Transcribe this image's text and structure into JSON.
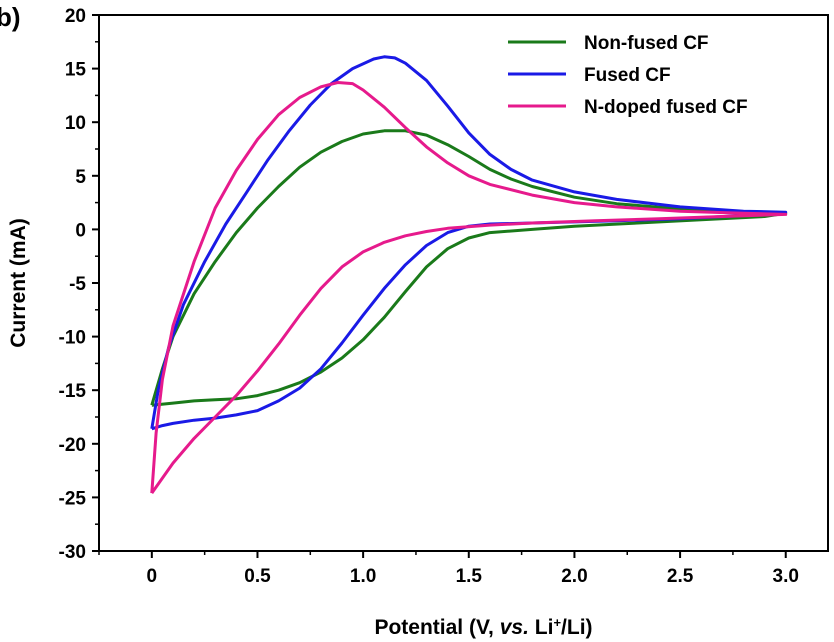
{
  "panel_label": "b)",
  "chart_data": {
    "type": "line",
    "title": "",
    "xlabel": {
      "prefix": "Potential (V, ",
      "italic": "vs.",
      "mid": " Li",
      "sup": "+",
      "suffix": "/Li)"
    },
    "ylabel": "Current (mA)",
    "xlim": [
      -0.25,
      3.2
    ],
    "ylim": [
      -30,
      20
    ],
    "xticks": [
      0,
      0.5,
      1.0,
      1.5,
      2.0,
      2.5,
      3.0
    ],
    "xtick_labels": [
      "0",
      "0.5",
      "1.0",
      "1.5",
      "2.0",
      "2.5",
      "3.0"
    ],
    "yticks": [
      20,
      15,
      10,
      5,
      0,
      -5,
      -10,
      -15,
      -20,
      -25,
      -30
    ],
    "ytick_labels": [
      "20",
      "15",
      "10",
      "5",
      "0",
      "-5",
      "-10",
      "-15",
      "-20",
      "-25",
      "-30"
    ],
    "legend_position": "top-right",
    "series": [
      {
        "name": "Non-fused CF",
        "color": "#1a7a1a",
        "points": [
          [
            0.0,
            -16.4
          ],
          [
            0.05,
            -13
          ],
          [
            0.1,
            -10
          ],
          [
            0.2,
            -6
          ],
          [
            0.3,
            -3
          ],
          [
            0.4,
            -0.3
          ],
          [
            0.5,
            2
          ],
          [
            0.6,
            4
          ],
          [
            0.7,
            5.8
          ],
          [
            0.8,
            7.2
          ],
          [
            0.9,
            8.2
          ],
          [
            1.0,
            8.9
          ],
          [
            1.1,
            9.2
          ],
          [
            1.2,
            9.2
          ],
          [
            1.3,
            8.8
          ],
          [
            1.4,
            7.9
          ],
          [
            1.5,
            6.8
          ],
          [
            1.6,
            5.6
          ],
          [
            1.7,
            4.7
          ],
          [
            1.8,
            4
          ],
          [
            2.0,
            3
          ],
          [
            2.2,
            2.4
          ],
          [
            2.5,
            1.9
          ],
          [
            2.8,
            1.6
          ],
          [
            3.0,
            1.5
          ],
          [
            2.9,
            1.2
          ],
          [
            2.6,
            0.9
          ],
          [
            2.3,
            0.6
          ],
          [
            2.0,
            0.3
          ],
          [
            1.8,
            0
          ],
          [
            1.6,
            -0.3
          ],
          [
            1.5,
            -0.8
          ],
          [
            1.4,
            -1.8
          ],
          [
            1.3,
            -3.5
          ],
          [
            1.2,
            -5.8
          ],
          [
            1.1,
            -8.2
          ],
          [
            1.0,
            -10.3
          ],
          [
            0.9,
            -12
          ],
          [
            0.8,
            -13.3
          ],
          [
            0.7,
            -14.3
          ],
          [
            0.6,
            -15
          ],
          [
            0.5,
            -15.5
          ],
          [
            0.4,
            -15.8
          ],
          [
            0.3,
            -15.9
          ],
          [
            0.2,
            -16
          ],
          [
            0.1,
            -16.2
          ],
          [
            0.0,
            -16.4
          ]
        ]
      },
      {
        "name": "Fused CF",
        "color": "#1a1ae6",
        "points": [
          [
            0.0,
            -18.6
          ],
          [
            0.03,
            -15
          ],
          [
            0.08,
            -11
          ],
          [
            0.15,
            -7
          ],
          [
            0.25,
            -3
          ],
          [
            0.35,
            0.5
          ],
          [
            0.45,
            3.5
          ],
          [
            0.55,
            6.5
          ],
          [
            0.65,
            9.2
          ],
          [
            0.75,
            11.6
          ],
          [
            0.85,
            13.6
          ],
          [
            0.95,
            15
          ],
          [
            1.05,
            15.9
          ],
          [
            1.1,
            16.1
          ],
          [
            1.15,
            16
          ],
          [
            1.2,
            15.5
          ],
          [
            1.3,
            13.9
          ],
          [
            1.4,
            11.5
          ],
          [
            1.5,
            9
          ],
          [
            1.6,
            7
          ],
          [
            1.7,
            5.6
          ],
          [
            1.8,
            4.6
          ],
          [
            2.0,
            3.5
          ],
          [
            2.2,
            2.8
          ],
          [
            2.5,
            2.1
          ],
          [
            2.8,
            1.7
          ],
          [
            3.0,
            1.6
          ],
          [
            2.8,
            1.3
          ],
          [
            2.5,
            1
          ],
          [
            2.2,
            0.8
          ],
          [
            2.0,
            0.7
          ],
          [
            1.8,
            0.6
          ],
          [
            1.6,
            0.5
          ],
          [
            1.5,
            0.3
          ],
          [
            1.4,
            -0.3
          ],
          [
            1.3,
            -1.5
          ],
          [
            1.2,
            -3.3
          ],
          [
            1.1,
            -5.5
          ],
          [
            1.0,
            -8
          ],
          [
            0.9,
            -10.6
          ],
          [
            0.8,
            -13
          ],
          [
            0.7,
            -14.8
          ],
          [
            0.6,
            -16
          ],
          [
            0.5,
            -16.9
          ],
          [
            0.4,
            -17.3
          ],
          [
            0.3,
            -17.6
          ],
          [
            0.2,
            -17.8
          ],
          [
            0.1,
            -18.1
          ],
          [
            0.05,
            -18.3
          ],
          [
            0.0,
            -18.6
          ]
        ]
      },
      {
        "name": "N-doped fused CF",
        "color": "#e61a8c",
        "points": [
          [
            0.0,
            -24.6
          ],
          [
            0.02,
            -19
          ],
          [
            0.05,
            -14
          ],
          [
            0.1,
            -9
          ],
          [
            0.2,
            -3
          ],
          [
            0.3,
            2
          ],
          [
            0.4,
            5.5
          ],
          [
            0.5,
            8.4
          ],
          [
            0.6,
            10.7
          ],
          [
            0.7,
            12.3
          ],
          [
            0.8,
            13.3
          ],
          [
            0.88,
            13.7
          ],
          [
            0.95,
            13.6
          ],
          [
            1.0,
            13
          ],
          [
            1.1,
            11.4
          ],
          [
            1.2,
            9.5
          ],
          [
            1.3,
            7.7
          ],
          [
            1.4,
            6.2
          ],
          [
            1.5,
            5
          ],
          [
            1.6,
            4.2
          ],
          [
            1.8,
            3.2
          ],
          [
            2.0,
            2.5
          ],
          [
            2.2,
            2.1
          ],
          [
            2.5,
            1.7
          ],
          [
            2.8,
            1.5
          ],
          [
            3.0,
            1.4
          ],
          [
            2.7,
            1.2
          ],
          [
            2.4,
            1
          ],
          [
            2.1,
            0.8
          ],
          [
            1.8,
            0.6
          ],
          [
            1.6,
            0.4
          ],
          [
            1.4,
            0.1
          ],
          [
            1.3,
            -0.2
          ],
          [
            1.2,
            -0.6
          ],
          [
            1.1,
            -1.2
          ],
          [
            1.0,
            -2.1
          ],
          [
            0.9,
            -3.5
          ],
          [
            0.8,
            -5.5
          ],
          [
            0.7,
            -8
          ],
          [
            0.6,
            -10.7
          ],
          [
            0.5,
            -13.2
          ],
          [
            0.4,
            -15.5
          ],
          [
            0.3,
            -17.5
          ],
          [
            0.2,
            -19.5
          ],
          [
            0.1,
            -21.8
          ],
          [
            0.05,
            -23.2
          ],
          [
            0.0,
            -24.6
          ]
        ]
      }
    ]
  }
}
